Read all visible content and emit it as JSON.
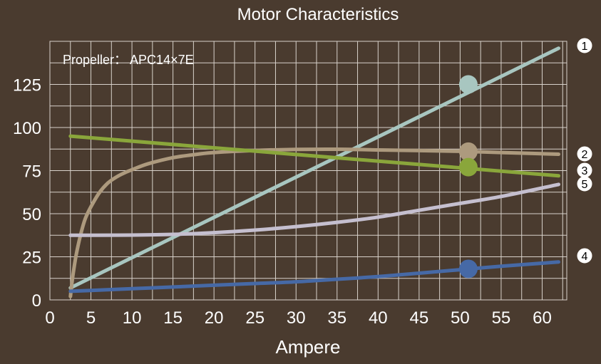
{
  "chart_data": {
    "type": "line",
    "title": "Motor Characteristics",
    "xlabel": "Ampere",
    "ylabel": "",
    "annotation": "Propeller： APC14×7E",
    "xlim": [
      0,
      63
    ],
    "ylim": [
      0,
      150
    ],
    "xticks": [
      0,
      5,
      10,
      15,
      20,
      25,
      30,
      35,
      40,
      45,
      50,
      55,
      60
    ],
    "yticks": [
      0,
      25,
      50,
      75,
      100,
      125
    ],
    "grid": true,
    "colors": {
      "background": "#4a3b2f",
      "grid": "#d8d2cb",
      "text": "#ffffff"
    },
    "series": [
      {
        "label": "1",
        "color": "#a8c6c0",
        "x": [
          2.5,
          62
        ],
        "y": [
          7,
          146
        ],
        "marker": {
          "x": 51,
          "y": 125
        }
      },
      {
        "label": "2",
        "color": "#ad9a7e",
        "x": [
          2.5,
          2.8,
          3.2,
          3.7,
          4.3,
          5,
          6,
          7,
          8,
          9,
          10,
          12,
          15,
          18,
          20,
          25,
          30,
          35,
          40,
          45,
          50,
          55,
          62
        ],
        "y": [
          2,
          14,
          26,
          37,
          47,
          54,
          62,
          67.5,
          71,
          73.5,
          75.5,
          79,
          82.5,
          84.5,
          85.5,
          86.7,
          87.3,
          87.4,
          87,
          86.6,
          86.2,
          85.5,
          84.5
        ],
        "marker": {
          "x": 51,
          "y": 86
        }
      },
      {
        "label": "3",
        "color": "#8aa63b",
        "x": [
          2.5,
          62
        ],
        "y": [
          95,
          72
        ],
        "marker": {
          "x": 51,
          "y": 77
        }
      },
      {
        "label": "4",
        "color": "#4669a6",
        "x": [
          2.5,
          5,
          10,
          15,
          20,
          25,
          30,
          35,
          40,
          45,
          50,
          55,
          62
        ],
        "y": [
          5,
          5.5,
          6.5,
          7.5,
          8.5,
          9.5,
          10.5,
          12,
          13.5,
          15.5,
          17.5,
          19.5,
          22
        ],
        "marker": {
          "x": 51,
          "y": 18
        }
      },
      {
        "label": "5",
        "color": "#c5bfcf",
        "x": [
          2.5,
          5,
          10,
          15,
          20,
          25,
          30,
          35,
          40,
          45,
          50,
          55,
          62
        ],
        "y": [
          37.5,
          37.5,
          37.6,
          38,
          39,
          40.5,
          42.5,
          45,
          48,
          52,
          56,
          60,
          67
        ]
      }
    ]
  }
}
